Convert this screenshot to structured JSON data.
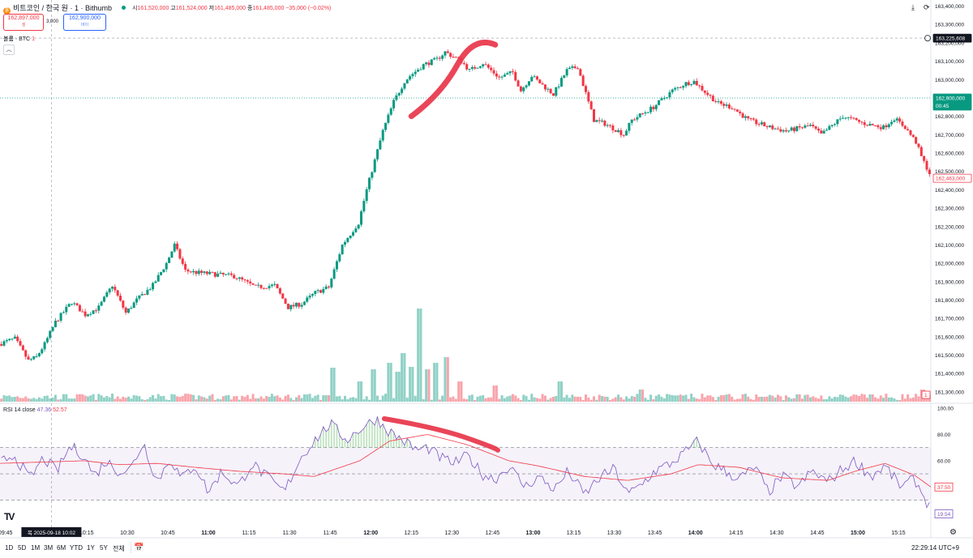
{
  "header": {
    "logo_glyph": "₿",
    "symbol": "비트코인 / 한국 원 · 1 · Bithumb",
    "ohlc": [
      {
        "label": "시",
        "value": "161,520,000"
      },
      {
        "label": "고",
        "value": "161,524,000"
      },
      {
        "label": "저",
        "value": "161,485,000"
      },
      {
        "label": "종",
        "value": "161,485,000"
      }
    ],
    "change": "−35,000 (−0.02%)",
    "sell_price": "162,897,000",
    "sell_label": "셀",
    "buy_price": "162,900,000",
    "buy_label": "바이",
    "spread": "3,000",
    "icons": [
      "download-icon",
      "refresh-icon"
    ]
  },
  "volume_label": "볼륨 · BTC",
  "volume_value": "1",
  "rsi_label": "RSI 14 close",
  "rsi_value_1": "47.36",
  "rsi_value_2": "52.57",
  "crosshair_label": "목 2025-09-18   10:02",
  "toolbar": {
    "ranges": [
      "1D",
      "5D",
      "1M",
      "3M",
      "6M",
      "YTD",
      "1Y",
      "5Y",
      "전체"
    ],
    "clock": "22:29:14 UTC+9"
  },
  "colors": {
    "up": "#089981",
    "down": "#f23645",
    "rsi_line": "#7e57c2",
    "rsi_ma": "#f23645",
    "annotation": "#e8354a"
  },
  "chart_data": [
    {
      "type": "candlestick",
      "title": "비트코인 / 한국 원 · 1 · Bithumb",
      "yticks": [
        "163,400,000",
        "163,300,000",
        "163,200,000",
        "163,100,000",
        "163,000,000",
        "162,900,000",
        "162,800,000",
        "162,700,000",
        "162,600,000",
        "162,500,000",
        "162,400,000",
        "162,300,000",
        "162,200,000",
        "162,100,000",
        "162,000,000",
        "161,900,000",
        "161,800,000",
        "161,700,000",
        "161,600,000",
        "161,500,000",
        "161,400,000",
        "161,300,000"
      ],
      "ylim": [
        161260000,
        163420000
      ],
      "xticks": [
        "09:45",
        "10:15",
        "10:30",
        "10:45",
        "11:00",
        "11:15",
        "11:30",
        "11:45",
        "12:00",
        "12:15",
        "12:30",
        "12:45",
        "13:00",
        "13:15",
        "13:30",
        "13:45",
        "14:00",
        "14:15",
        "14:30",
        "14:45",
        "15:00",
        "15:15"
      ],
      "xtick_minutes": [
        585,
        615,
        630,
        645,
        660,
        675,
        690,
        705,
        720,
        735,
        750,
        765,
        780,
        795,
        810,
        825,
        840,
        855,
        870,
        885,
        900,
        915
      ],
      "xlim_minutes": [
        583,
        927
      ],
      "crosshair_price": "163,225,608",
      "last_price": "162,900,000",
      "last_countdown": "00:45",
      "sell_marker": "162,463,000",
      "path_minutes": [
        583,
        589,
        594,
        597,
        600,
        604,
        610,
        615,
        620,
        625,
        630,
        634,
        640,
        645,
        648,
        652,
        656,
        663,
        670,
        678,
        685,
        690,
        695,
        700,
        705,
        710,
        716,
        719,
        722,
        725,
        729,
        733,
        735,
        740,
        745,
        748,
        754,
        757,
        762,
        768,
        773,
        776,
        780,
        788,
        793,
        797,
        803,
        807,
        812,
        814,
        817,
        825,
        832,
        837,
        840,
        845,
        849,
        854,
        860,
        868,
        874,
        883,
        887,
        895,
        903,
        910,
        914,
        918,
        922,
        924,
        927
      ],
      "path_prices": [
        161560000,
        161590000,
        161470000,
        161490000,
        161560000,
        161680000,
        161790000,
        161720000,
        161760000,
        161880000,
        161730000,
        161800000,
        161880000,
        162000000,
        162100000,
        161960000,
        161950000,
        161940000,
        161930000,
        161870000,
        161880000,
        161760000,
        161780000,
        161840000,
        161870000,
        162100000,
        162220000,
        162400000,
        162560000,
        162720000,
        162880000,
        162990000,
        163020000,
        163080000,
        163110000,
        163150000,
        163100000,
        163050000,
        163090000,
        163010000,
        163040000,
        162940000,
        163020000,
        162920000,
        163050000,
        163070000,
        162780000,
        162760000,
        162720000,
        162700000,
        162780000,
        162850000,
        162940000,
        162980000,
        162990000,
        162920000,
        162870000,
        162850000,
        162780000,
        162740000,
        162720000,
        162750000,
        162700000,
        162800000,
        162760000,
        162740000,
        162790000,
        162740000,
        162660000,
        162580000,
        162490000
      ],
      "volume_spikes": [
        [
          703,
          8
        ],
        [
          706,
          42
        ],
        [
          716,
          25
        ],
        [
          721,
          40
        ],
        [
          727,
          48
        ],
        [
          730,
          37
        ],
        [
          732,
          60
        ],
        [
          735,
          43
        ],
        [
          738,
          115
        ],
        [
          741,
          40
        ],
        [
          744,
          48
        ],
        [
          748,
          55
        ],
        [
          753,
          25
        ],
        [
          766,
          20
        ],
        [
          790,
          25
        ],
        [
          820,
          15
        ],
        [
          850,
          8
        ],
        [
          905,
          9
        ],
        [
          924,
          15
        ]
      ]
    },
    {
      "type": "line",
      "title": "RSI 14 close",
      "yticks": [
        "100.00",
        "80.00",
        "60.00",
        "40.00"
      ],
      "ylim": [
        10,
        100
      ],
      "band": [
        30,
        70
      ],
      "current_values": [
        "37.50",
        "19.54"
      ],
      "rsi_key_minutes": [
        583,
        588,
        594,
        599,
        604,
        609,
        614,
        618,
        622,
        627,
        631,
        636,
        641,
        646,
        650,
        655,
        660,
        665,
        671,
        676,
        682,
        688,
        694,
        699,
        705,
        711,
        716,
        722,
        727,
        733,
        737,
        741,
        746,
        751,
        756,
        761,
        766,
        771,
        777,
        782,
        788,
        793,
        799,
        804,
        810,
        815,
        820,
        825,
        831,
        836,
        841,
        846,
        851,
        856,
        862,
        867,
        872,
        878,
        883,
        889,
        894,
        899,
        905,
        910,
        916,
        921,
        927
      ],
      "rsi_key_values": [
        58,
        65,
        46,
        62,
        52,
        71,
        64,
        48,
        60,
        52,
        53,
        74,
        44,
        62,
        46,
        57,
        36,
        52,
        40,
        58,
        47,
        36,
        62,
        75,
        88,
        76,
        84,
        92,
        82,
        74,
        68,
        70,
        62,
        58,
        64,
        50,
        46,
        56,
        40,
        48,
        38,
        52,
        34,
        46,
        54,
        34,
        42,
        52,
        58,
        66,
        75,
        58,
        52,
        46,
        55,
        36,
        48,
        40,
        52,
        44,
        53,
        60,
        48,
        56,
        40,
        46,
        23
      ],
      "ma_key_minutes": [
        583,
        599,
        614,
        627,
        641,
        655,
        671,
        688,
        699,
        716,
        727,
        741,
        756,
        771,
        782,
        799,
        815,
        831,
        841,
        856,
        872,
        889,
        899,
        910,
        921,
        927
      ],
      "ma_key_values": [
        58,
        59,
        60,
        57,
        58,
        55,
        52,
        50,
        48,
        60,
        75,
        80,
        72,
        60,
        56,
        48,
        45,
        50,
        57,
        55,
        47,
        45,
        52,
        58,
        49,
        40
      ]
    }
  ]
}
